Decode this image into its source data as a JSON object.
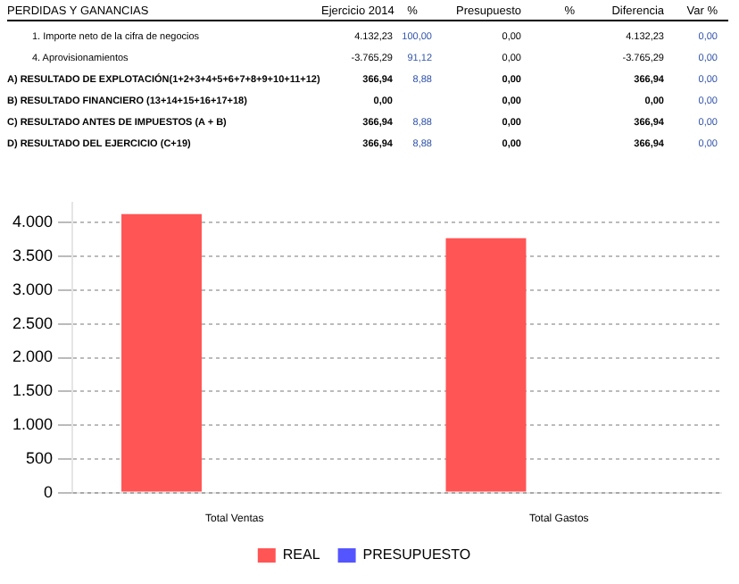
{
  "chart_data": {
    "type": "bar",
    "title": "PERDIDAS Y GANANCIAS",
    "annotations": [
      "Ejercicio 2014",
      "%",
      "Presupuesto",
      "%",
      "Diferencia",
      "Var %",
      "1. Importe neto de la cifra de negocios",
      "4.132,23",
      "100,00",
      "0,00",
      "4.132,23",
      "0,00",
      "4. Aprovisionamientos",
      "-3.765,29",
      "91,12",
      "0,00",
      "-3.765,29",
      "0,00",
      "A) RESULTADO DE EXPLOTACIÓN(1+2+3+4+5+6+7+8+9+10+11+12)",
      "366,94",
      "8,88",
      "0,00",
      "366,94",
      "0,00",
      "B) RESULTADO FINANCIERO (13+14+15+16+17+18)",
      "0,00",
      null,
      "0,00",
      "0,00",
      "0,00",
      "C) RESULTADO ANTES DE IMPUESTOS (A + B)",
      "366,94",
      "8,88",
      "0,00",
      "366,94",
      "0,00",
      "D) RESULTADO DEL EJERCICIO (C+19)",
      "366,94",
      "8,88",
      "0,00",
      "366,94",
      "0,00"
    ],
    "categories": [
      "Total Ventas",
      "Total Gastos"
    ],
    "series": [
      {
        "name": "REAL",
        "color": "#ff5555",
        "values": [
          4130,
          3770
        ]
      },
      {
        "name": "PRESUPUESTO",
        "color": "#5555ff",
        "values": [
          0,
          0
        ]
      }
    ],
    "ylim": [
      0,
      4300
    ],
    "yticks": [
      {
        "value": 0,
        "label": "0"
      },
      {
        "value": 500,
        "label": "500"
      },
      {
        "value": 1000,
        "label": "1.000"
      },
      {
        "value": 1500,
        "label": "1.500"
      },
      {
        "value": 2000,
        "label": "2.000"
      },
      {
        "value": 2500,
        "label": "2.500"
      },
      {
        "value": 3000,
        "label": "3.000"
      },
      {
        "value": 3500,
        "label": "3.500"
      },
      {
        "value": 4000,
        "label": "4.000"
      }
    ],
    "grid": "y",
    "legend": "bottom"
  }
}
